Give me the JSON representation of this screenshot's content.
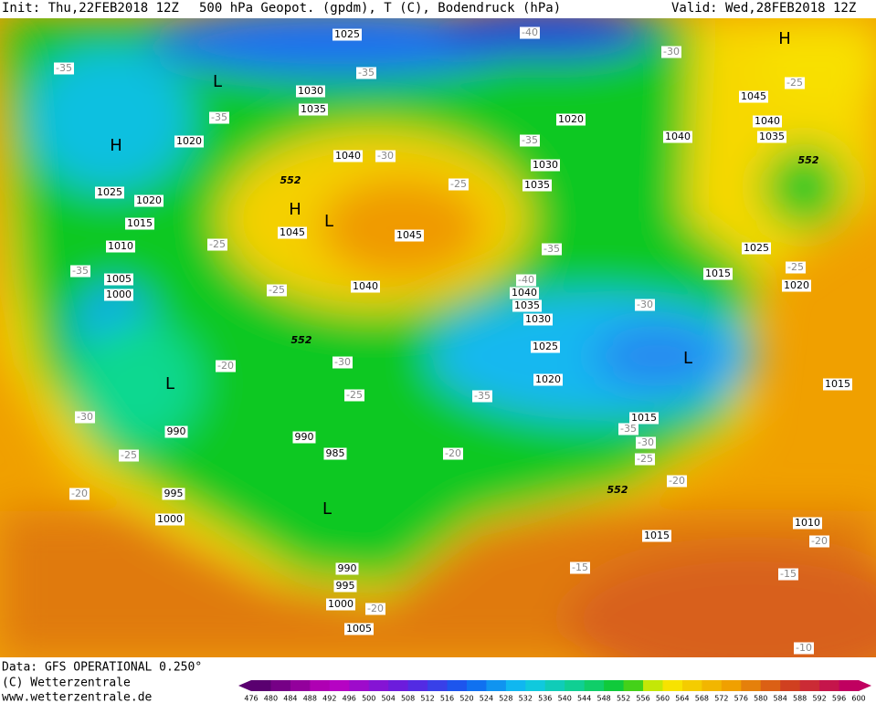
{
  "header": {
    "init": "Init: Thu,22FEB2018 12Z",
    "fields": "500 hPa Geopot. (gpdm), T (C), Bodendruck (hPa)",
    "valid": "Valid: Wed,28FEB2018 12Z"
  },
  "map": {
    "isobar_labels": [
      "1025",
      "1030",
      "1035",
      "1040",
      "1045",
      "1045",
      "1040",
      "1020",
      "1025",
      "1020",
      "1015",
      "1010",
      "1005",
      "1000",
      "1020",
      "1040",
      "1030",
      "1035",
      "1045",
      "1040",
      "1035",
      "1025",
      "1015",
      "1020",
      "1040",
      "1035",
      "1030",
      "1025",
      "1020",
      "1015",
      "990",
      "990",
      "985",
      "995",
      "1000",
      "1015",
      "1010",
      "1015",
      "990",
      "995",
      "1000",
      "1005"
    ],
    "geopotential_labels": [
      "552",
      "552",
      "552",
      "552"
    ],
    "temperature_labels": [
      "-35",
      "-35",
      "-35",
      "-40",
      "-30",
      "-25",
      "-35",
      "-30",
      "-25",
      "-25",
      "-35",
      "-25",
      "-40",
      "-25",
      "-30",
      "-35",
      "-20",
      "-30",
      "-25",
      "-35",
      "-30",
      "-25",
      "-20",
      "-20",
      "-35",
      "-30",
      "-25",
      "-20",
      "-15",
      "-15",
      "-20",
      "-10",
      "-20"
    ],
    "pressure_centers": [
      "L",
      "H",
      "H",
      "L",
      "L",
      "L",
      "L",
      "H"
    ]
  },
  "footer": {
    "data": "Data: GFS OPERATIONAL 0.250°",
    "copyright": "(C) Wetterzentrale",
    "url": "www.wetterzentrale.de"
  },
  "colorbar": {
    "labels": [
      476,
      480,
      484,
      488,
      492,
      496,
      500,
      504,
      508,
      512,
      516,
      520,
      524,
      528,
      532,
      536,
      540,
      544,
      548,
      552,
      556,
      560,
      564,
      568,
      572,
      576,
      580,
      584,
      588,
      592,
      596,
      600
    ]
  }
}
